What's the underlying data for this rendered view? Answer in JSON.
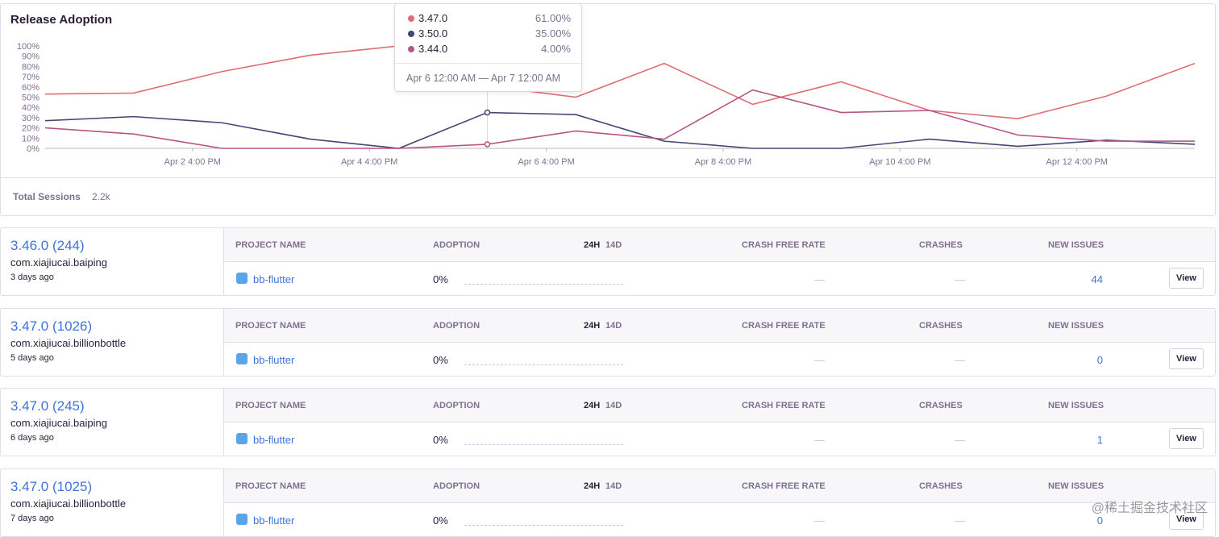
{
  "chart_data": {
    "type": "line",
    "title": "Release Adoption",
    "x": [
      "Apr 1 12:00 AM",
      "Apr 2 12:00 AM",
      "Apr 3 12:00 AM",
      "Apr 4 12:00 AM",
      "Apr 5 12:00 AM",
      "Apr 6 12:00 AM",
      "Apr 7 12:00 AM",
      "Apr 8 12:00 AM",
      "Apr 9 12:00 AM",
      "Apr 10 12:00 AM",
      "Apr 11 12:00 AM",
      "Apr 12 12:00 AM",
      "Apr 13 12:00 AM",
      "Apr 14 12:00 AM"
    ],
    "xlim": [
      "Apr 1 12:00 AM",
      "Apr 14 12:00 AM"
    ],
    "xticks": [
      "Apr 2 4:00 PM",
      "Apr 4 4:00 PM",
      "Apr 6 4:00 PM",
      "Apr 8 4:00 PM",
      "Apr 10 4:00 PM",
      "Apr 12 4:00 PM"
    ],
    "ylim": [
      0,
      100
    ],
    "yticks": [
      {
        "value": 0,
        "label": "0%"
      },
      {
        "value": 10,
        "label": "10%"
      },
      {
        "value": 20,
        "label": "20%"
      },
      {
        "value": 30,
        "label": "30%"
      },
      {
        "value": 40,
        "label": "40%"
      },
      {
        "value": 50,
        "label": "50%"
      },
      {
        "value": 60,
        "label": "60%"
      },
      {
        "value": 70,
        "label": "70%"
      },
      {
        "value": 80,
        "label": "80%"
      },
      {
        "value": 90,
        "label": "90%"
      },
      {
        "value": 100,
        "label": "100%"
      }
    ],
    "series": [
      {
        "name": "3.47.0",
        "color": "#df6e74",
        "values": [
          53,
          54,
          75,
          91,
          100,
          61,
          50,
          83,
          43,
          65,
          37,
          29,
          51,
          83
        ]
      },
      {
        "name": "3.50.0",
        "color": "#444674",
        "values": [
          27,
          31,
          25,
          9,
          0,
          35,
          33,
          7,
          0,
          0,
          9,
          2,
          8,
          4
        ]
      },
      {
        "name": "3.44.0",
        "color": "#b85586",
        "values": [
          20,
          14,
          0,
          0,
          0,
          4,
          17,
          9,
          57,
          35,
          37,
          13,
          7,
          7
        ]
      }
    ],
    "tooltip": {
      "items": [
        {
          "name": "3.47.0",
          "value": "61.00%"
        },
        {
          "name": "3.50.0",
          "value": "35.00%"
        },
        {
          "name": "3.44.0",
          "value": "4.00%"
        }
      ],
      "range": "Apr 6 12:00 AM — Apr 7 12:00 AM"
    }
  },
  "summary": {
    "label": "Total Sessions",
    "value": "2.2k"
  },
  "headers": {
    "project": "PROJECT NAME",
    "adoption": "ADOPTION",
    "h24": "24H",
    "d14": "14D",
    "crash_free": "CRASH FREE RATE",
    "crashes": "CRASHES",
    "new_issues": "NEW ISSUES"
  },
  "releases": [
    {
      "version": "3.46.0 (244)",
      "package": "com.xiajiucai.baiping",
      "age": "3 days ago",
      "project": "bb-flutter",
      "adoption": "0%",
      "crash_free": "—",
      "crashes": "—",
      "new_issues": "44",
      "button": "View"
    },
    {
      "version": "3.47.0 (1026)",
      "package": "com.xiajiucai.billionbottle",
      "age": "5 days ago",
      "project": "bb-flutter",
      "adoption": "0%",
      "crash_free": "—",
      "crashes": "—",
      "new_issues": "0",
      "button": "View"
    },
    {
      "version": "3.47.0 (245)",
      "package": "com.xiajiucai.baiping",
      "age": "6 days ago",
      "project": "bb-flutter",
      "adoption": "0%",
      "crash_free": "—",
      "crashes": "—",
      "new_issues": "1",
      "button": "View"
    },
    {
      "version": "3.47.0 (1025)",
      "package": "com.xiajiucai.billionbottle",
      "age": "7 days ago",
      "project": "bb-flutter",
      "adoption": "0%",
      "crash_free": "—",
      "crashes": "—",
      "new_issues": "0",
      "button": "View"
    }
  ],
  "watermark": "@稀土掘金技术社区"
}
